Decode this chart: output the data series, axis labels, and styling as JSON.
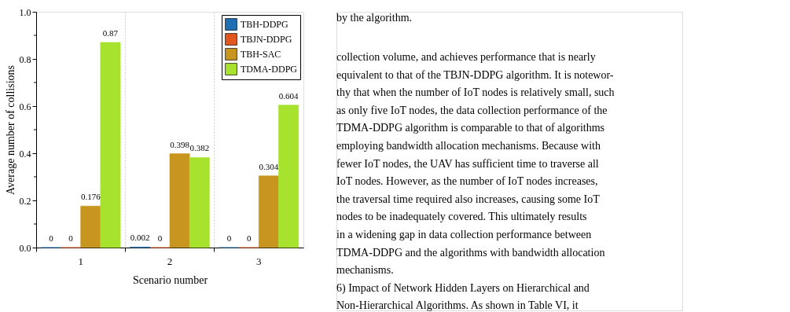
{
  "chart_data": {
    "type": "bar",
    "categories": [
      "1",
      "2",
      "3"
    ],
    "series": [
      {
        "name": "TBH-DDPG",
        "color": "#1f6fb5",
        "values": [
          0,
          0.002,
          0
        ]
      },
      {
        "name": "TBJN-DDPG",
        "color": "#e2571e",
        "values": [
          0,
          0,
          0
        ]
      },
      {
        "name": "TBH-SAC",
        "color": "#c8961e",
        "values": [
          0.176,
          0.398,
          0.304
        ]
      },
      {
        "name": "TDMA-DDPG",
        "color": "#a6e22e",
        "values": [
          0.87,
          0.382,
          0.604
        ]
      }
    ],
    "xlabel": "Scenario number",
    "ylabel": "Average number of collisions",
    "ylim": [
      0,
      1
    ],
    "yticks": [
      {
        "value": 0,
        "label": "0.0"
      },
      {
        "value": 0.1,
        "label": null
      },
      {
        "value": 0.2,
        "label": "0.2"
      },
      {
        "value": 0.3,
        "label": null
      },
      {
        "value": 0.4,
        "label": "0.4"
      },
      {
        "value": 0.5,
        "label": null
      },
      {
        "value": 0.6,
        "label": "0.6"
      },
      {
        "value": 0.7,
        "label": null
      },
      {
        "value": 0.8,
        "label": "0.8"
      },
      {
        "value": 0.9,
        "label": null
      },
      {
        "value": 1,
        "label": "1.0"
      }
    ],
    "data_labels": true,
    "legend": "top right",
    "grid": "x",
    "annotations": [
      "by the algorithm.",
      "collection volume, and achieves performance that is nearly",
      "equivalent to that of the TBJN-DDPG algorithm. It is notewor-",
      "thy that when the number of IoT nodes is relatively small, such",
      "as only five IoT nodes, the data collection performance of the",
      "TDMA-DDPG algorithm is comparable to that of algorithms",
      "employing bandwidth allocation mechanisms. Because with",
      "fewer IoT nodes, the UAV has sufficient time to traverse all",
      "IoT nodes. However, as the number of IoT nodes increases,",
      "the traversal time required also increases, causing some IoT",
      "nodes to be inadequately covered. This ultimately results",
      "in a widening gap in data collection performance between",
      "TDMA-DDPG and the algorithms with bandwidth allocation",
      "mechanisms.",
      "6) Impact of Network Hidden Layers on Hierarchical and",
      "Non-Hierarchical Algorithms. As shown in Table VI, it"
    ]
  }
}
